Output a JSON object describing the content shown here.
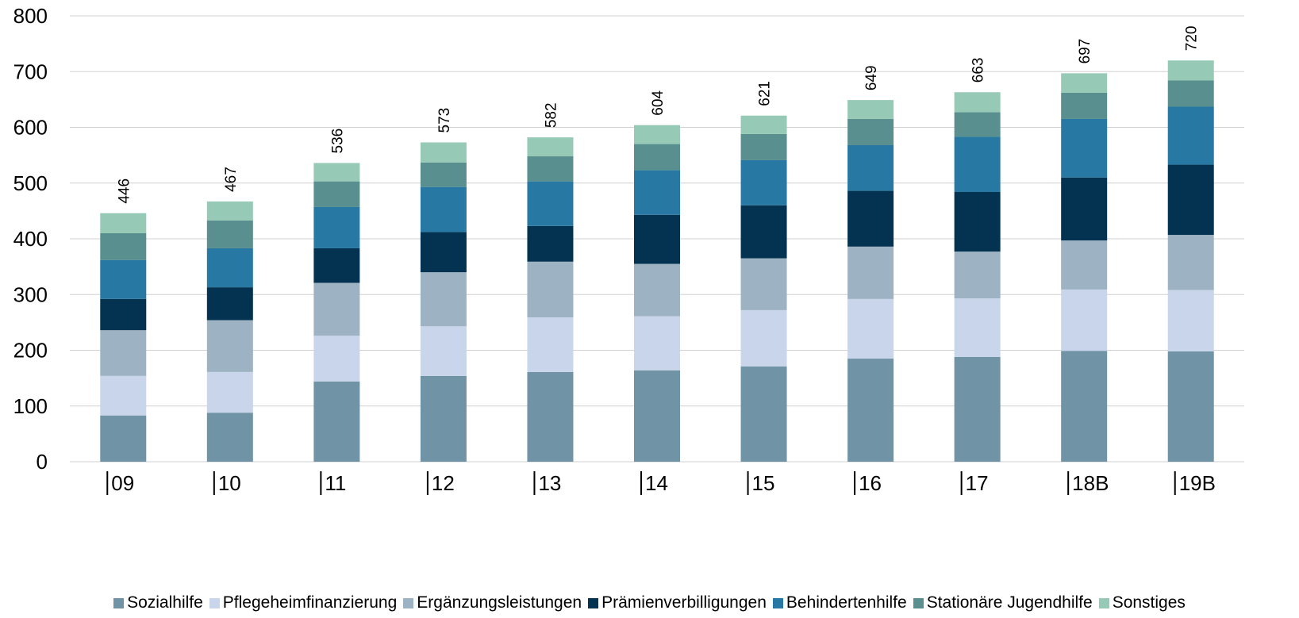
{
  "chart_data": {
    "type": "stacked-bar",
    "categories": [
      "09",
      "10",
      "11",
      "12",
      "13",
      "14",
      "15",
      "16",
      "17",
      "18B",
      "19B"
    ],
    "series": [
      {
        "name": "Sozialhilfe",
        "color": "#7094a6",
        "values": [
          83,
          88,
          144,
          154,
          161,
          164,
          171,
          185,
          188,
          199,
          198
        ]
      },
      {
        "name": "Pflegeheimfinanzierung",
        "color": "#c8d5ea",
        "values": [
          71,
          73,
          82,
          89,
          98,
          97,
          101,
          107,
          105,
          110,
          110
        ]
      },
      {
        "name": "Ergänzungsleistungen",
        "color": "#9db3c3",
        "values": [
          82,
          93,
          95,
          97,
          100,
          94,
          93,
          94,
          84,
          88,
          99
        ]
      },
      {
        "name": "Prämienverbilligungen",
        "color": "#033350",
        "values": [
          56,
          59,
          62,
          72,
          64,
          88,
          95,
          100,
          107,
          113,
          126
        ]
      },
      {
        "name": "Behindertenhilfe",
        "color": "#2779a3",
        "values": [
          70,
          70,
          74,
          81,
          80,
          80,
          81,
          82,
          99,
          105,
          104
        ]
      },
      {
        "name": "Stationäre Jugendhilfe",
        "color": "#5a8f8f",
        "values": [
          48,
          50,
          46,
          44,
          45,
          47,
          47,
          47,
          44,
          47,
          47
        ]
      },
      {
        "name": "Sonstiges",
        "color": "#96cab6",
        "values": [
          36,
          34,
          33,
          36,
          34,
          34,
          33,
          34,
          36,
          35,
          36
        ]
      }
    ],
    "totals": [
      446,
      467,
      536,
      573,
      582,
      604,
      621,
      649,
      663,
      697,
      720
    ],
    "ylim": [
      0,
      800
    ],
    "yticks": [
      0,
      100,
      200,
      300,
      400,
      500,
      600,
      700,
      800
    ],
    "grid": true
  }
}
